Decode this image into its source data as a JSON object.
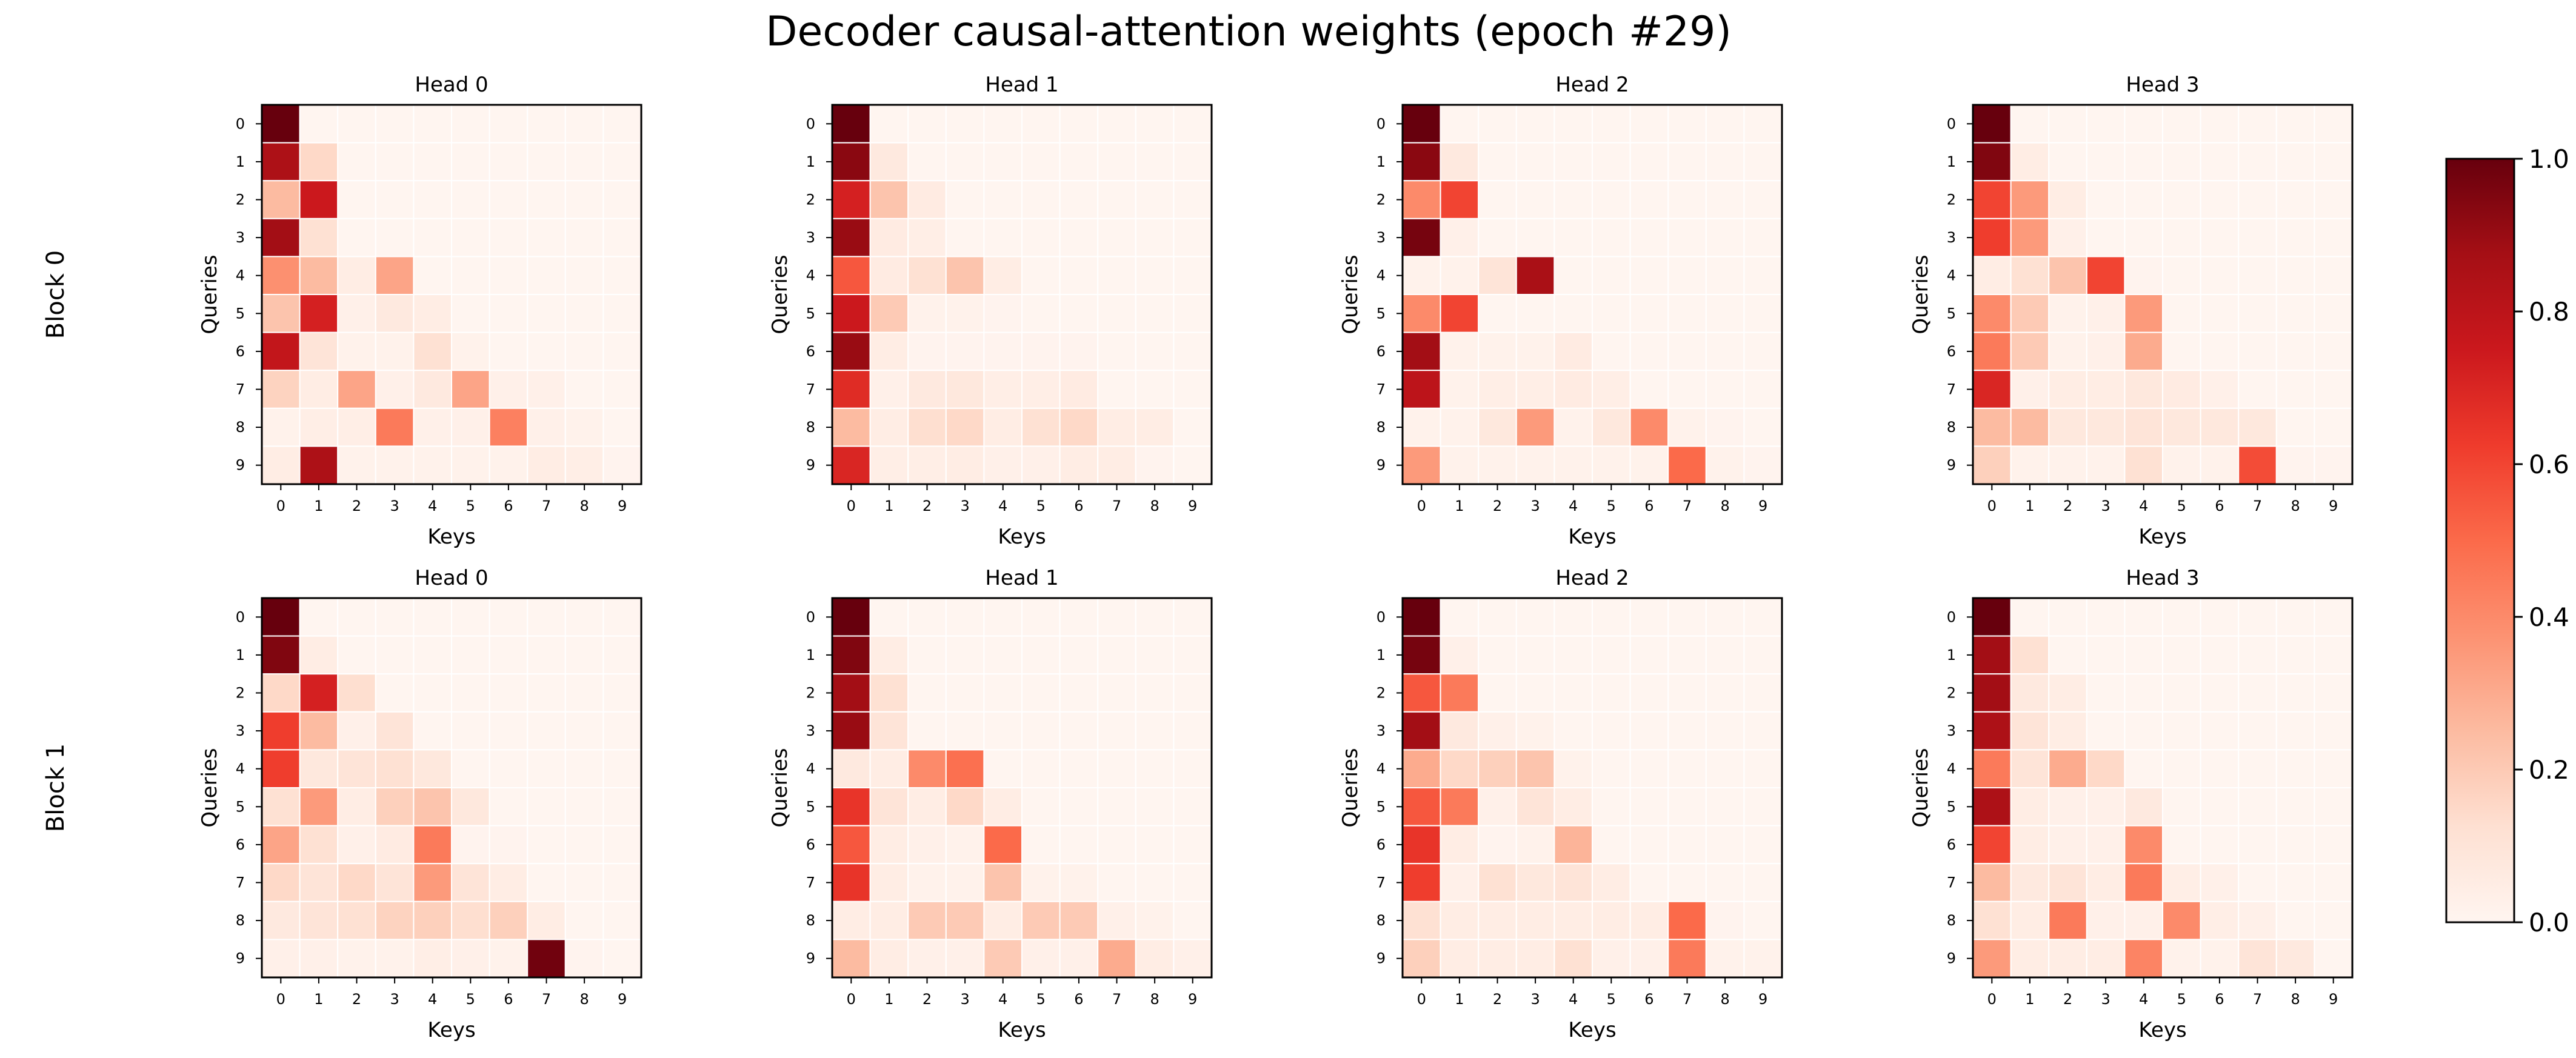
{
  "figure": {
    "title": "Decoder causal-attention weights (epoch #29)",
    "colormap": [
      "#fff5f0",
      "#fee0d2",
      "#fcbba1",
      "#fc9272",
      "#fb6a4a",
      "#ef3b2c",
      "#cb181d",
      "#a50f15",
      "#67000d"
    ],
    "cell_edge_color": "#ffffff"
  },
  "chart_data": [
    {
      "type": "heatmap",
      "title": "Head 0",
      "row_group": "Block 0",
      "xlabel": "Keys",
      "ylabel": "Queries",
      "x": [
        "0",
        "1",
        "2",
        "3",
        "4",
        "5",
        "6",
        "7",
        "8",
        "9"
      ],
      "y": [
        "0",
        "1",
        "2",
        "3",
        "4",
        "5",
        "6",
        "7",
        "8",
        "9"
      ],
      "vmin": 0,
      "vmax": 1,
      "values": [
        [
          1.0,
          0,
          0,
          0,
          0,
          0,
          0,
          0,
          0,
          0
        ],
        [
          0.85,
          0.15,
          0,
          0,
          0,
          0,
          0,
          0,
          0,
          0
        ],
        [
          0.25,
          0.75,
          0,
          0,
          0,
          0,
          0,
          0,
          0,
          0
        ],
        [
          0.88,
          0.12,
          0,
          0,
          0,
          0,
          0,
          0,
          0,
          0
        ],
        [
          0.38,
          0.25,
          0.05,
          0.32,
          0,
          0,
          0,
          0,
          0,
          0
        ],
        [
          0.22,
          0.72,
          0.03,
          0.07,
          0.05,
          0,
          0,
          0,
          0,
          0
        ],
        [
          0.78,
          0.1,
          0.02,
          0.02,
          0.12,
          0.02,
          0,
          0,
          0,
          0
        ],
        [
          0.17,
          0.05,
          0.32,
          0.03,
          0.07,
          0.32,
          0.03,
          0.03,
          0,
          0
        ],
        [
          0.02,
          0.04,
          0.04,
          0.45,
          0.03,
          0.03,
          0.43,
          0.03,
          0.02,
          0
        ],
        [
          0.05,
          0.85,
          0.02,
          0.02,
          0.02,
          0.02,
          0.02,
          0.05,
          0.04,
          0.01
        ]
      ]
    },
    {
      "type": "heatmap",
      "title": "Head 1",
      "row_group": "Block 0",
      "xlabel": "Keys",
      "ylabel": "Queries",
      "x": [
        "0",
        "1",
        "2",
        "3",
        "4",
        "5",
        "6",
        "7",
        "8",
        "9"
      ],
      "y": [
        "0",
        "1",
        "2",
        "3",
        "4",
        "5",
        "6",
        "7",
        "8",
        "9"
      ],
      "vmin": 0,
      "vmax": 1,
      "values": [
        [
          1.0,
          0,
          0,
          0,
          0,
          0,
          0,
          0,
          0,
          0
        ],
        [
          0.93,
          0.07,
          0,
          0,
          0,
          0,
          0,
          0,
          0,
          0
        ],
        [
          0.72,
          0.22,
          0.06,
          0,
          0,
          0,
          0,
          0,
          0,
          0
        ],
        [
          0.9,
          0.06,
          0.04,
          0,
          0,
          0,
          0,
          0,
          0,
          0
        ],
        [
          0.55,
          0.06,
          0.12,
          0.22,
          0.05,
          0,
          0,
          0,
          0,
          0
        ],
        [
          0.75,
          0.2,
          0.02,
          0.02,
          0.01,
          0,
          0,
          0,
          0,
          0
        ],
        [
          0.9,
          0.05,
          0.01,
          0.01,
          0.01,
          0.01,
          0.01,
          0,
          0,
          0
        ],
        [
          0.68,
          0.03,
          0.07,
          0.08,
          0.04,
          0.04,
          0.06,
          0,
          0,
          0
        ],
        [
          0.25,
          0.05,
          0.13,
          0.15,
          0.05,
          0.12,
          0.15,
          0.05,
          0.05,
          0
        ],
        [
          0.7,
          0.04,
          0.04,
          0.05,
          0.03,
          0.03,
          0.05,
          0.05,
          0.01,
          0
        ]
      ]
    },
    {
      "type": "heatmap",
      "title": "Head 2",
      "row_group": "Block 0",
      "xlabel": "Keys",
      "ylabel": "Queries",
      "x": [
        "0",
        "1",
        "2",
        "3",
        "4",
        "5",
        "6",
        "7",
        "8",
        "9"
      ],
      "y": [
        "0",
        "1",
        "2",
        "3",
        "4",
        "5",
        "6",
        "7",
        "8",
        "9"
      ],
      "vmin": 0,
      "vmax": 1,
      "values": [
        [
          1.0,
          0,
          0,
          0,
          0,
          0,
          0,
          0,
          0,
          0
        ],
        [
          0.93,
          0.07,
          0,
          0,
          0,
          0,
          0,
          0,
          0,
          0
        ],
        [
          0.4,
          0.6,
          0,
          0,
          0,
          0,
          0,
          0,
          0,
          0
        ],
        [
          0.97,
          0.03,
          0,
          0,
          0,
          0,
          0,
          0,
          0,
          0
        ],
        [
          0.02,
          0.02,
          0.1,
          0.86,
          0,
          0,
          0,
          0,
          0,
          0
        ],
        [
          0.4,
          0.6,
          0,
          0,
          0,
          0,
          0,
          0,
          0,
          0
        ],
        [
          0.88,
          0.02,
          0.02,
          0.02,
          0.06,
          0,
          0,
          0,
          0,
          0
        ],
        [
          0.8,
          0.02,
          0.04,
          0.04,
          0.06,
          0.04,
          0,
          0,
          0,
          0
        ],
        [
          0.02,
          0.02,
          0.08,
          0.35,
          0.02,
          0.08,
          0.4,
          0.02,
          0.01,
          0
        ],
        [
          0.35,
          0.02,
          0.02,
          0.02,
          0.02,
          0.02,
          0.02,
          0.5,
          0.02,
          0.01
        ]
      ]
    },
    {
      "type": "heatmap",
      "title": "Head 3",
      "row_group": "Block 0",
      "xlabel": "Keys",
      "ylabel": "Queries",
      "x": [
        "0",
        "1",
        "2",
        "3",
        "4",
        "5",
        "6",
        "7",
        "8",
        "9"
      ],
      "y": [
        "0",
        "1",
        "2",
        "3",
        "4",
        "5",
        "6",
        "7",
        "8",
        "9"
      ],
      "vmin": 0,
      "vmax": 1,
      "values": [
        [
          1.0,
          0,
          0,
          0,
          0,
          0,
          0,
          0,
          0,
          0
        ],
        [
          0.95,
          0.05,
          0,
          0,
          0,
          0,
          0,
          0,
          0,
          0
        ],
        [
          0.6,
          0.35,
          0.05,
          0,
          0,
          0,
          0,
          0,
          0,
          0
        ],
        [
          0.62,
          0.35,
          0.03,
          0,
          0,
          0,
          0,
          0,
          0,
          0
        ],
        [
          0.05,
          0.12,
          0.22,
          0.6,
          0.01,
          0,
          0,
          0,
          0,
          0
        ],
        [
          0.4,
          0.2,
          0.02,
          0.03,
          0.35,
          0,
          0,
          0,
          0,
          0
        ],
        [
          0.45,
          0.2,
          0.02,
          0.03,
          0.3,
          0,
          0,
          0,
          0,
          0
        ],
        [
          0.7,
          0.03,
          0.05,
          0.05,
          0.08,
          0.06,
          0.03,
          0,
          0,
          0
        ],
        [
          0.25,
          0.25,
          0.08,
          0.08,
          0.1,
          0.08,
          0.08,
          0.08,
          0,
          0
        ],
        [
          0.18,
          0.02,
          0.02,
          0.02,
          0.12,
          0.02,
          0.02,
          0.58,
          0.01,
          0.01
        ]
      ]
    },
    {
      "type": "heatmap",
      "title": "Head 0",
      "row_group": "Block 1",
      "xlabel": "Keys",
      "ylabel": "Queries",
      "x": [
        "0",
        "1",
        "2",
        "3",
        "4",
        "5",
        "6",
        "7",
        "8",
        "9"
      ],
      "y": [
        "0",
        "1",
        "2",
        "3",
        "4",
        "5",
        "6",
        "7",
        "8",
        "9"
      ],
      "vmin": 0,
      "vmax": 1,
      "values": [
        [
          1.0,
          0,
          0,
          0,
          0,
          0,
          0,
          0,
          0,
          0
        ],
        [
          0.95,
          0.05,
          0,
          0,
          0,
          0,
          0,
          0,
          0,
          0
        ],
        [
          0.15,
          0.72,
          0.13,
          0,
          0,
          0,
          0,
          0,
          0,
          0
        ],
        [
          0.62,
          0.25,
          0.03,
          0.1,
          0,
          0,
          0,
          0,
          0,
          0
        ],
        [
          0.62,
          0.08,
          0.1,
          0.12,
          0.08,
          0,
          0,
          0,
          0,
          0
        ],
        [
          0.12,
          0.35,
          0.05,
          0.18,
          0.22,
          0.08,
          0,
          0,
          0,
          0
        ],
        [
          0.32,
          0.12,
          0.03,
          0.06,
          0.45,
          0.01,
          0.01,
          0,
          0,
          0
        ],
        [
          0.15,
          0.1,
          0.15,
          0.1,
          0.35,
          0.1,
          0.05,
          0,
          0,
          0
        ],
        [
          0.07,
          0.1,
          0.12,
          0.17,
          0.18,
          0.13,
          0.18,
          0.05,
          0,
          0
        ],
        [
          0.03,
          0.03,
          0.02,
          0.02,
          0.04,
          0.03,
          0.02,
          0.98,
          0.01,
          0
        ]
      ]
    },
    {
      "type": "heatmap",
      "title": "Head 1",
      "row_group": "Block 1",
      "xlabel": "Keys",
      "ylabel": "Queries",
      "x": [
        "0",
        "1",
        "2",
        "3",
        "4",
        "5",
        "6",
        "7",
        "8",
        "9"
      ],
      "y": [
        "0",
        "1",
        "2",
        "3",
        "4",
        "5",
        "6",
        "7",
        "8",
        "9"
      ],
      "vmin": 0,
      "vmax": 1,
      "values": [
        [
          1.0,
          0,
          0,
          0,
          0,
          0,
          0,
          0,
          0,
          0
        ],
        [
          0.95,
          0.05,
          0,
          0,
          0,
          0,
          0,
          0,
          0,
          0
        ],
        [
          0.88,
          0.12,
          0,
          0,
          0,
          0,
          0,
          0,
          0,
          0
        ],
        [
          0.9,
          0.1,
          0,
          0,
          0,
          0,
          0,
          0,
          0,
          0
        ],
        [
          0.07,
          0.05,
          0.4,
          0.48,
          0,
          0,
          0,
          0,
          0,
          0
        ],
        [
          0.65,
          0.1,
          0.05,
          0.15,
          0.05,
          0,
          0,
          0,
          0,
          0
        ],
        [
          0.55,
          0.05,
          0.03,
          0.02,
          0.5,
          0,
          0,
          0,
          0,
          0
        ],
        [
          0.65,
          0.05,
          0.02,
          0.02,
          0.22,
          0.02,
          0.02,
          0,
          0,
          0
        ],
        [
          0.05,
          0.05,
          0.2,
          0.2,
          0.05,
          0.2,
          0.2,
          0.03,
          0.02,
          0
        ],
        [
          0.25,
          0.05,
          0.03,
          0.03,
          0.2,
          0.03,
          0.03,
          0.3,
          0.05,
          0.03
        ]
      ]
    },
    {
      "type": "heatmap",
      "title": "Head 2",
      "row_group": "Block 1",
      "xlabel": "Keys",
      "ylabel": "Queries",
      "x": [
        "0",
        "1",
        "2",
        "3",
        "4",
        "5",
        "6",
        "7",
        "8",
        "9"
      ],
      "y": [
        "0",
        "1",
        "2",
        "3",
        "4",
        "5",
        "6",
        "7",
        "8",
        "9"
      ],
      "vmin": 0,
      "vmax": 1,
      "values": [
        [
          1.0,
          0,
          0,
          0,
          0,
          0,
          0,
          0,
          0,
          0
        ],
        [
          0.97,
          0.03,
          0,
          0,
          0,
          0,
          0,
          0,
          0,
          0
        ],
        [
          0.55,
          0.45,
          0,
          0,
          0,
          0,
          0,
          0,
          0,
          0
        ],
        [
          0.88,
          0.07,
          0.03,
          0.02,
          0,
          0,
          0,
          0,
          0,
          0
        ],
        [
          0.3,
          0.15,
          0.18,
          0.22,
          0.02,
          0,
          0,
          0,
          0,
          0
        ],
        [
          0.55,
          0.45,
          0.03,
          0.1,
          0.05,
          0,
          0,
          0,
          0,
          0
        ],
        [
          0.65,
          0.05,
          0.01,
          0.02,
          0.27,
          0,
          0,
          0,
          0,
          0
        ],
        [
          0.62,
          0.03,
          0.12,
          0.08,
          0.1,
          0.05,
          0,
          0,
          0,
          0
        ],
        [
          0.12,
          0.05,
          0.05,
          0.05,
          0.05,
          0.05,
          0.05,
          0.5,
          0.01,
          0
        ],
        [
          0.18,
          0.05,
          0.05,
          0.05,
          0.12,
          0.03,
          0.03,
          0.45,
          0.02,
          0.02
        ]
      ]
    },
    {
      "type": "heatmap",
      "title": "Head 3",
      "row_group": "Block 1",
      "xlabel": "Keys",
      "ylabel": "Queries",
      "x": [
        "0",
        "1",
        "2",
        "3",
        "4",
        "5",
        "6",
        "7",
        "8",
        "9"
      ],
      "y": [
        "0",
        "1",
        "2",
        "3",
        "4",
        "5",
        "6",
        "7",
        "8",
        "9"
      ],
      "vmin": 0,
      "vmax": 1,
      "values": [
        [
          1.0,
          0,
          0,
          0,
          0,
          0,
          0,
          0,
          0,
          0
        ],
        [
          0.88,
          0.12,
          0,
          0,
          0,
          0,
          0,
          0,
          0,
          0
        ],
        [
          0.88,
          0.07,
          0.05,
          0,
          0,
          0,
          0,
          0,
          0,
          0
        ],
        [
          0.85,
          0.1,
          0.05,
          0,
          0,
          0,
          0,
          0,
          0,
          0
        ],
        [
          0.45,
          0.1,
          0.3,
          0.15,
          0,
          0,
          0,
          0,
          0,
          0
        ],
        [
          0.85,
          0.05,
          0.03,
          0.03,
          0.07,
          0,
          0,
          0,
          0,
          0
        ],
        [
          0.6,
          0.05,
          0.03,
          0.03,
          0.4,
          0,
          0,
          0,
          0,
          0
        ],
        [
          0.25,
          0.07,
          0.1,
          0.05,
          0.45,
          0.04,
          0.03,
          0,
          0,
          0
        ],
        [
          0.12,
          0.05,
          0.45,
          0.03,
          0.03,
          0.4,
          0.04,
          0.03,
          0,
          0
        ],
        [
          0.35,
          0.05,
          0.05,
          0.05,
          0.42,
          0.02,
          0.02,
          0.1,
          0.07,
          0
        ]
      ]
    }
  ],
  "colorbar": {
    "ticks": [
      "0.0",
      "0.2",
      "0.4",
      "0.6",
      "0.8",
      "1.0"
    ],
    "tick_values": [
      0,
      0.2,
      0.4,
      0.6,
      0.8,
      1.0
    ],
    "vmin": 0,
    "vmax": 1
  }
}
